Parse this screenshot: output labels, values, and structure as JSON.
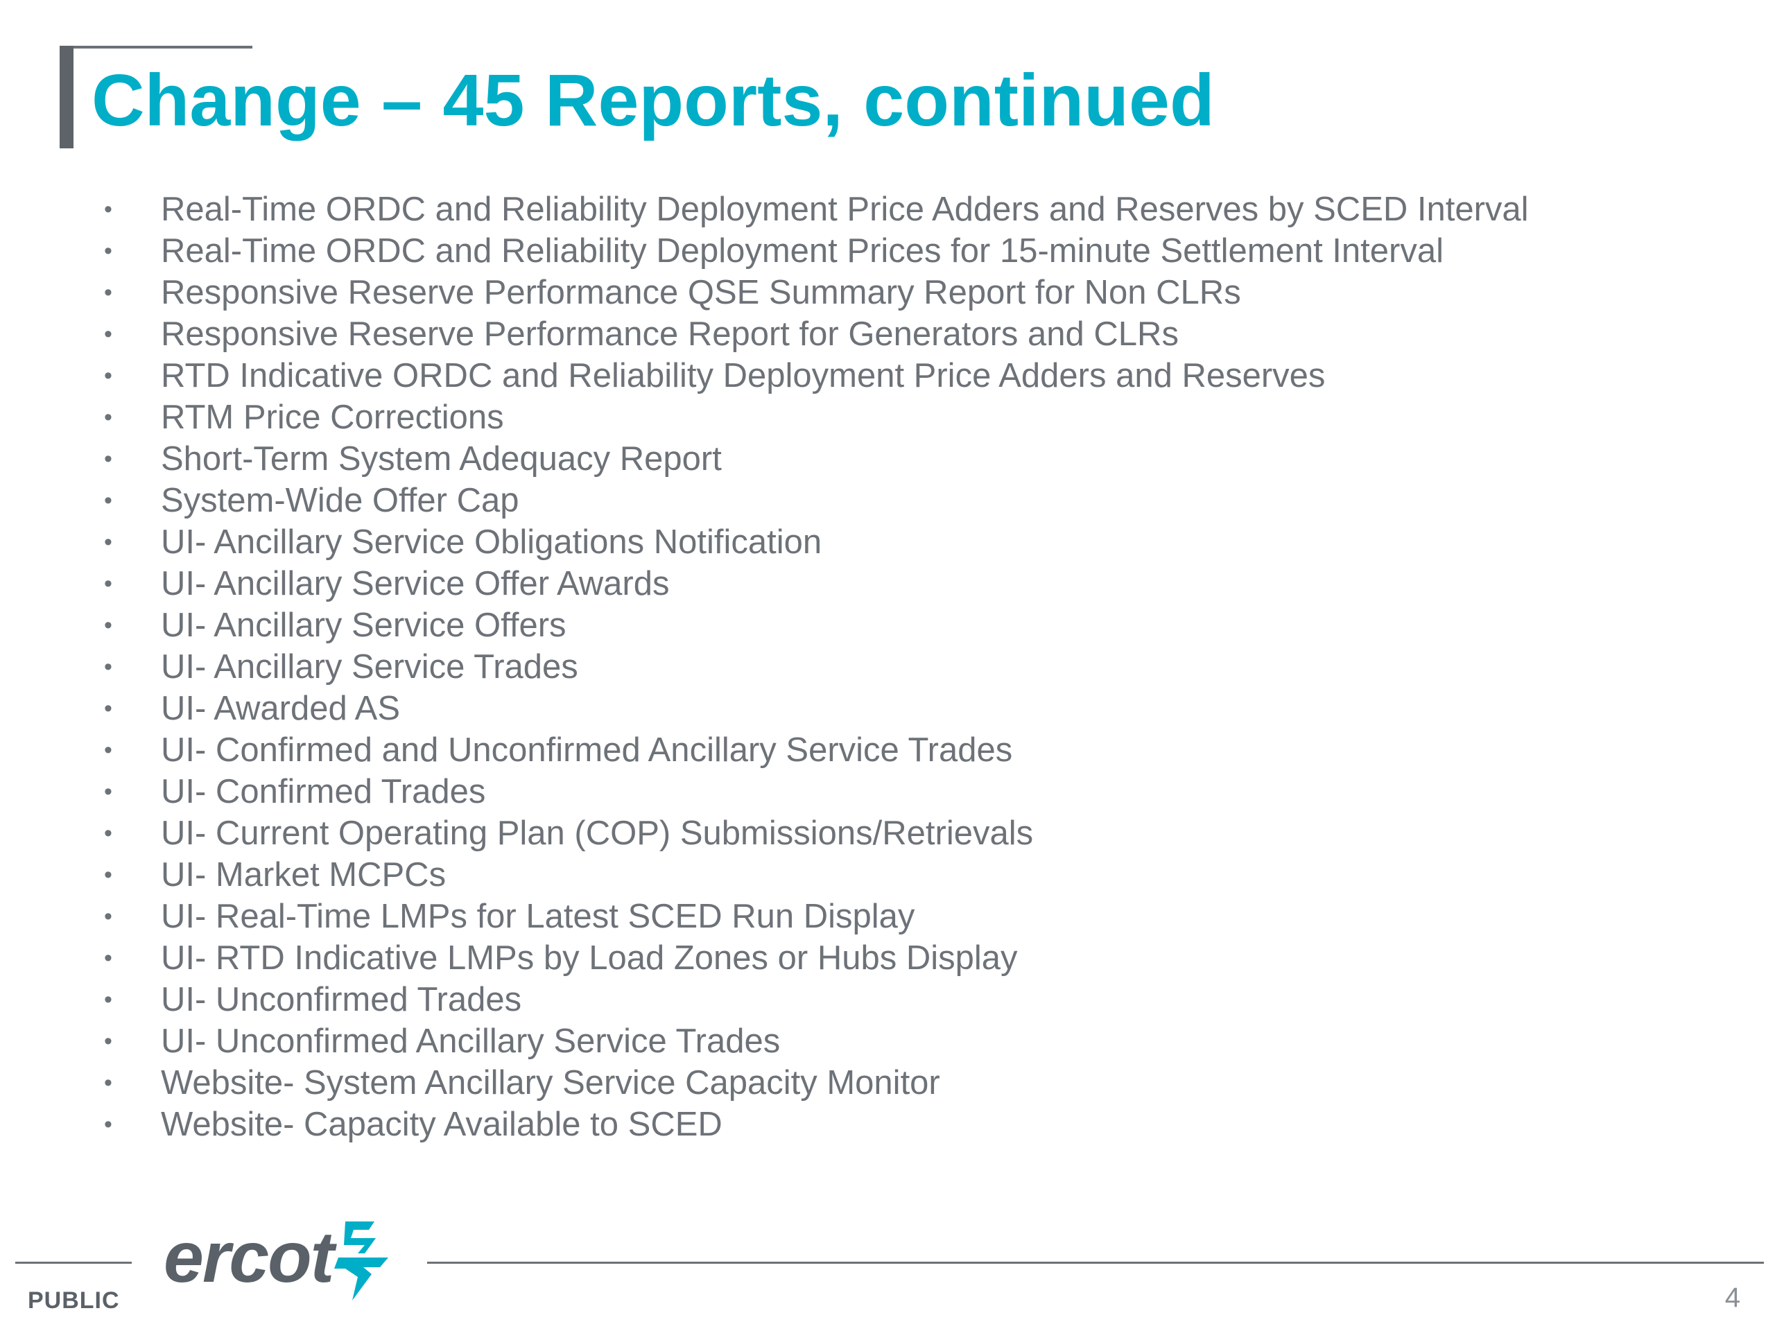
{
  "slide": {
    "title": "Change – 45 Reports,  continued",
    "bullet_glyph": "•",
    "items": [
      "Real-Time ORDC and Reliability Deployment Price Adders and Reserves by SCED Interval",
      "Real-Time ORDC and Reliability Deployment Prices for 15-minute Settlement Interval",
      "Responsive Reserve Performance QSE Summary Report for Non CLRs",
      "Responsive Reserve Performance Report for Generators and CLRs",
      "RTD Indicative ORDC and Reliability Deployment Price Adders and Reserves",
      "RTM Price Corrections",
      "Short-Term System Adequacy Report",
      "System-Wide Offer Cap",
      "UI- Ancillary Service Obligations Notification",
      "UI- Ancillary Service Offer Awards",
      "UI- Ancillary Service Offers",
      "UI- Ancillary Service Trades",
      "UI- Awarded AS",
      "UI- Confirmed and Unconfirmed Ancillary Service Trades",
      "UI- Confirmed Trades",
      "UI- Current Operating Plan (COP) Submissions/Retrievals",
      "UI- Market MCPCs",
      "UI- Real-Time LMPs for Latest SCED Run Display",
      "UI- RTD Indicative LMPs by Load Zones or Hubs Display",
      "UI- Unconfirmed Trades",
      "UI- Unconfirmed Ancillary Service Trades",
      "Website- System Ancillary Service Capacity Monitor",
      "Website- Capacity Available to SCED"
    ]
  },
  "footer": {
    "logo_text": "ercot",
    "logo_mark_icon": "ercot-lightning-mark-icon",
    "classification": "PUBLIC",
    "page_number": "4"
  },
  "colors": {
    "title": "#00aec7",
    "body_text": "#6d7278",
    "frame": "#5d6369",
    "logo_gray": "#5b6168",
    "logo_teal": "#00aec7"
  }
}
